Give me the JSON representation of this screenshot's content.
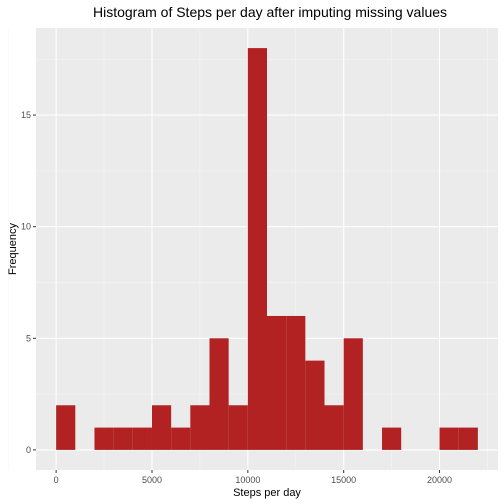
{
  "chart_data": {
    "type": "bar",
    "title": "Histogram of Steps per day after imputing missing values",
    "xlabel": "Steps per day",
    "ylabel": "Frequency",
    "bin_width": 1000,
    "bins": [
      {
        "x_start": 0,
        "x_end": 1000,
        "count": 2
      },
      {
        "x_start": 1000,
        "x_end": 2000,
        "count": 0
      },
      {
        "x_start": 2000,
        "x_end": 3000,
        "count": 1
      },
      {
        "x_start": 3000,
        "x_end": 4000,
        "count": 1
      },
      {
        "x_start": 4000,
        "x_end": 5000,
        "count": 1
      },
      {
        "x_start": 5000,
        "x_end": 6000,
        "count": 2
      },
      {
        "x_start": 6000,
        "x_end": 7000,
        "count": 1
      },
      {
        "x_start": 7000,
        "x_end": 8000,
        "count": 2
      },
      {
        "x_start": 8000,
        "x_end": 9000,
        "count": 5
      },
      {
        "x_start": 9000,
        "x_end": 10000,
        "count": 2
      },
      {
        "x_start": 10000,
        "x_end": 11000,
        "count": 18
      },
      {
        "x_start": 11000,
        "x_end": 12000,
        "count": 6
      },
      {
        "x_start": 12000,
        "x_end": 13000,
        "count": 6
      },
      {
        "x_start": 13000,
        "x_end": 14000,
        "count": 4
      },
      {
        "x_start": 14000,
        "x_end": 15000,
        "count": 2
      },
      {
        "x_start": 15000,
        "x_end": 16000,
        "count": 5
      },
      {
        "x_start": 16000,
        "x_end": 17000,
        "count": 0
      },
      {
        "x_start": 17000,
        "x_end": 18000,
        "count": 1
      },
      {
        "x_start": 18000,
        "x_end": 19000,
        "count": 0
      },
      {
        "x_start": 19000,
        "x_end": 20000,
        "count": 0
      },
      {
        "x_start": 20000,
        "x_end": 21000,
        "count": 1
      },
      {
        "x_start": 21000,
        "x_end": 22000,
        "count": 1
      }
    ],
    "x_ticks": [
      0,
      5000,
      10000,
      15000,
      20000
    ],
    "x_tick_labels": [
      "0",
      "5000",
      "10000",
      "15000",
      "20000"
    ],
    "y_ticks": [
      0,
      5,
      10,
      15
    ],
    "y_tick_labels": [
      "0",
      "5",
      "10",
      "15"
    ],
    "xlim": [
      -1050,
      23050
    ],
    "ylim": [
      -0.9,
      18.9
    ],
    "grid": true,
    "colors": {
      "bar": "#b22222",
      "panel": "#ebebeb",
      "grid_major": "#ffffff",
      "grid_minor": "#f5f5f5"
    }
  }
}
